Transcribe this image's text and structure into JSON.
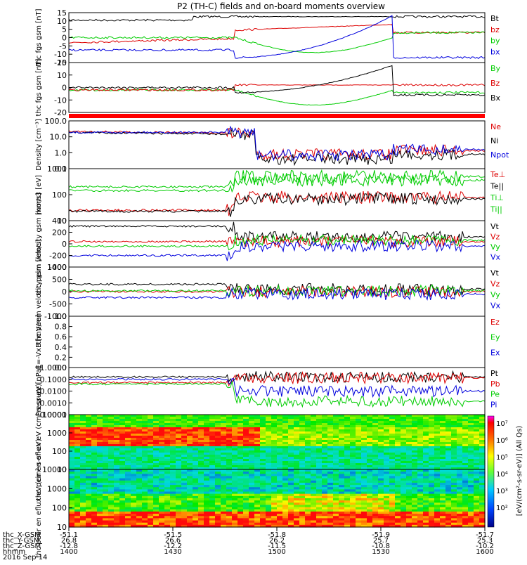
{
  "title": "P2 (TH-C) fields and on-board moments overview",
  "colors": {
    "black": "#000000",
    "red": "#dd0000",
    "green": "#00cc00",
    "blue": "#0000dd"
  },
  "footer": {
    "row_labels": [
      "thc_X-GSM",
      "thc_Y-GSM",
      "thc_Z-GSM",
      "hhmm",
      "2016 Sep 14"
    ],
    "columns": [
      {
        "x": "-51.1",
        "y": "26.8",
        "z": "-12.8",
        "hhmm": "1400"
      },
      {
        "x": "-51.5",
        "y": "26.6",
        "z": "-12.2",
        "hhmm": "1430"
      },
      {
        "x": "-51.8",
        "y": "26.2",
        "z": "-11.5",
        "hhmm": "1500"
      },
      {
        "x": "-51.9",
        "y": "25.7",
        "z": "-10.8",
        "hhmm": "1530"
      },
      {
        "x": "-51.7",
        "y": "25.3",
        "z": "-10.2",
        "hhmm": "1600"
      }
    ]
  },
  "colorbar": {
    "ticks": [
      "10⁷",
      "10⁶",
      "10⁵",
      "10⁴",
      "10³",
      "10²"
    ],
    "label": "[eV/(cm²-s-sr-eV)] (All Qs)"
  },
  "chart_data": [
    {
      "type": "line",
      "ylabel": "thc fgs gsm [nT]",
      "ylim": [
        -15,
        15
      ],
      "yticks": [
        "15",
        "10",
        "5",
        "0",
        "-5",
        "-10",
        "-15"
      ],
      "series": [
        {
          "name": "Bt",
          "color": "black"
        },
        {
          "name": "bz",
          "color": "red"
        },
        {
          "name": "by",
          "color": "green"
        },
        {
          "name": "bx",
          "color": "blue"
        }
      ]
    },
    {
      "type": "line",
      "ylabel": "thc fgs gsm [nT]",
      "ylim": [
        -20,
        20
      ],
      "yticks": [
        "20",
        "10",
        "0",
        "-10",
        "-20"
      ],
      "series": [
        {
          "name": "By",
          "color": "green"
        },
        {
          "name": "Bz",
          "color": "red"
        },
        {
          "name": "Bx",
          "color": "black"
        }
      ]
    },
    {
      "type": "line",
      "ylabel": "Density [cm⁻³]",
      "scale": "log",
      "ylim": [
        0.1,
        100
      ],
      "yticks": [
        "100.0",
        "10.0",
        "1.0",
        "0.1"
      ],
      "series": [
        {
          "name": "Ne",
          "color": "red"
        },
        {
          "name": "Ni",
          "color": "black"
        },
        {
          "name": "Npot",
          "color": "blue"
        }
      ]
    },
    {
      "type": "line",
      "ylabel": "mom3 [eV]",
      "scale": "log",
      "ylim": [
        10,
        1000
      ],
      "yticks": [
        "1000",
        "100",
        "10"
      ],
      "series": [
        {
          "name": "Te⊥",
          "color": "red"
        },
        {
          "name": "Te||",
          "color": "black"
        },
        {
          "name": "Ti⊥",
          "color": "green"
        },
        {
          "name": "Ti||",
          "color": "green"
        }
      ]
    },
    {
      "type": "line",
      "ylabel": "thc peim velocity gsm [km/s]",
      "ylim": [
        -400,
        400
      ],
      "yticks": [
        "400",
        "200",
        "0",
        "-200",
        "-400"
      ],
      "series": [
        {
          "name": "Vt",
          "color": "black"
        },
        {
          "name": "Vz",
          "color": "red"
        },
        {
          "name": "Vy",
          "color": "green"
        },
        {
          "name": "Vx",
          "color": "blue"
        }
      ]
    },
    {
      "type": "line",
      "ylabel": "thc peem velocity gsm [km/s]",
      "ylim": [
        -1000,
        1000
      ],
      "yticks": [
        "1000",
        "500",
        "0",
        "-500",
        "-1000"
      ],
      "series": [
        {
          "name": "Vt",
          "color": "black"
        },
        {
          "name": "Vz",
          "color": "red"
        },
        {
          "name": "Vy",
          "color": "green"
        },
        {
          "name": "Vx",
          "color": "blue"
        }
      ]
    },
    {
      "type": "line",
      "ylabel": "E=-VxB [mV/m]",
      "ylim": [
        0,
        1
      ],
      "yticks": [
        "1.0",
        "0.8",
        "0.6",
        "0.4",
        "0.2",
        "0.0"
      ],
      "series": [
        {
          "name": "Ez",
          "color": "red"
        },
        {
          "name": "Ey",
          "color": "green"
        },
        {
          "name": "Ex",
          "color": "blue"
        }
      ]
    },
    {
      "type": "line",
      "ylabel": "Pressure [nPa]",
      "scale": "log",
      "ylim": [
        0.0001,
        1
      ],
      "yticks": [
        "1.0000",
        "0.1000",
        "0.0100",
        "0.0010",
        "0.0001"
      ],
      "series": [
        {
          "name": "Pt",
          "color": "black"
        },
        {
          "name": "Pb",
          "color": "red"
        },
        {
          "name": "Pe",
          "color": "green"
        },
        {
          "name": "Pi",
          "color": "blue"
        }
      ]
    },
    {
      "type": "heatmap",
      "ylabel": "thc peir en eflux eV (cm²-s-sr-eV)",
      "scale": "log",
      "ylim": [
        10,
        10000
      ],
      "yticks": [
        "10000",
        "1000",
        "100",
        "10"
      ]
    },
    {
      "type": "heatmap",
      "ylabel": "thc peer en eflux eV (cm²-s-sr-eV)",
      "scale": "log",
      "ylim": [
        10,
        10000
      ],
      "yticks": [
        "10000",
        "1000",
        "100",
        "10"
      ]
    }
  ]
}
